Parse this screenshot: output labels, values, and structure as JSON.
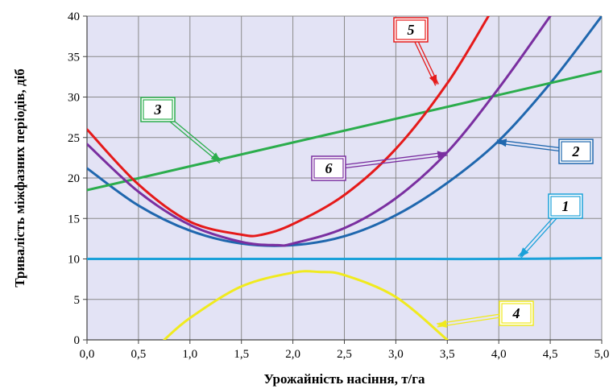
{
  "chart_data": {
    "type": "line",
    "xlabel": "Урожайність насіння, т/га",
    "ylabel": "Тривалість міжфазних періодів, діб",
    "xlim": [
      0,
      5
    ],
    "ylim": [
      0,
      40
    ],
    "x_ticks": [
      "0,0",
      "0,5",
      "1,0",
      "1,5",
      "2,0",
      "2,5",
      "3,0",
      "3,5",
      "4,0",
      "4,5",
      "5,0"
    ],
    "y_ticks": [
      "0",
      "5",
      "10",
      "15",
      "20",
      "25",
      "30",
      "35",
      "40"
    ],
    "grid": true,
    "plot_background": "#e3e3f5",
    "series": [
      {
        "name": "1",
        "color": "#1ba1d9",
        "x": [
          0,
          1,
          2,
          3,
          4,
          5
        ],
        "y": [
          10,
          10,
          10,
          10,
          10,
          10.1
        ]
      },
      {
        "name": "2",
        "color": "#1f67ae",
        "x": [
          0,
          0.5,
          1,
          1.5,
          2,
          2.5,
          3,
          3.5,
          4,
          4.5,
          5
        ],
        "y": [
          21.2,
          16.6,
          13.5,
          11.9,
          11.7,
          12.8,
          15.4,
          19.4,
          24.6,
          31.7,
          40
        ]
      },
      {
        "name": "3",
        "color": "#2bad4c",
        "x": [
          0,
          5
        ],
        "y": [
          18.5,
          33.2
        ]
      },
      {
        "name": "4",
        "color": "#f0ea1e",
        "x": [
          0.75,
          1,
          1.5,
          2,
          2.25,
          2.5,
          3,
          3.5
        ],
        "y": [
          0,
          2.7,
          6.6,
          8.3,
          8.4,
          8,
          5.3,
          0
        ]
      },
      {
        "name": "5",
        "color": "#e51a1a",
        "x": [
          0,
          0.5,
          1,
          1.5,
          1.7,
          2,
          2.5,
          3,
          3.5,
          3.9
        ],
        "y": [
          26,
          19.2,
          14.6,
          13.0,
          13.0,
          14.3,
          17.9,
          23.6,
          31.7,
          40
        ]
      },
      {
        "name": "6",
        "color": "#7a2fa0",
        "x": [
          0,
          0.5,
          1,
          1.5,
          1.85,
          2,
          2.5,
          3,
          3.5,
          4,
          4.5
        ],
        "y": [
          24.2,
          18.3,
          14.2,
          12.1,
          11.7,
          11.9,
          13.8,
          17.5,
          23.2,
          31.1,
          40
        ]
      }
    ],
    "annotations": [
      {
        "label": "1",
        "color": "#1ba1d9",
        "target_x": 4.2,
        "target_y": 10.2
      },
      {
        "label": "2",
        "color": "#1f67ae",
        "target_x": 3.98,
        "target_y": 24.5
      },
      {
        "label": "3",
        "color": "#2bad4c",
        "target_x": 1.3,
        "target_y": 22.0
      },
      {
        "label": "4",
        "color": "#f0ea1e",
        "target_x": 3.4,
        "target_y": 1.8
      },
      {
        "label": "5",
        "color": "#e51a1a",
        "target_x": 3.4,
        "target_y": 31.5
      },
      {
        "label": "6",
        "color": "#7a2fa0",
        "target_x": 3.5,
        "target_y": 23.0
      }
    ]
  }
}
